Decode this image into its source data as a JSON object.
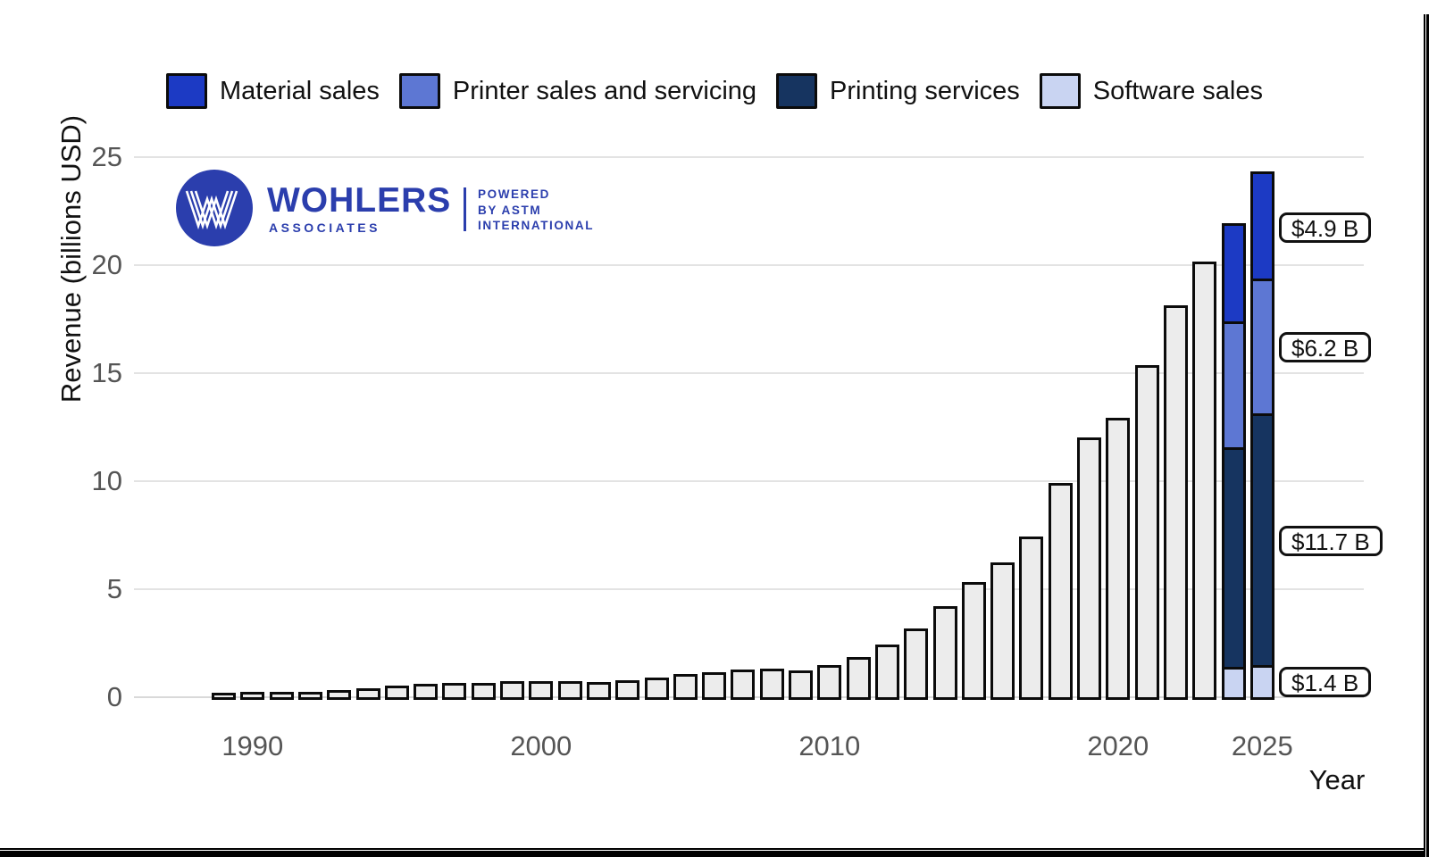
{
  "logo": {
    "brand": "WOHLERS",
    "subbrand": "ASSOCIATES",
    "tagline": [
      "POWERED",
      "BY ASTM",
      "INTERNATIONAL"
    ],
    "color": "#2b3ead"
  },
  "chart_data": {
    "type": "bar",
    "title": "",
    "ylabel": "Revenue (billions USD)",
    "xlabel": "Year",
    "ylim": [
      0,
      25
    ],
    "yticks": [
      0,
      5,
      10,
      15,
      20,
      25
    ],
    "xticks": [
      1990,
      2000,
      2010,
      2020,
      2025
    ],
    "grid": "horizontal",
    "legend_position": "top",
    "default_bar_color": "#ececec",
    "bar_border_color": "#0b0b0b",
    "gridline_color": "#e3e3e3",
    "series": [
      {
        "key": "material",
        "name": "Material sales",
        "color": "#1c3ac4"
      },
      {
        "key": "printer",
        "name": "Printer sales and servicing",
        "color": "#5d77d3"
      },
      {
        "key": "printing",
        "name": "Printing services",
        "color": "#163460"
      },
      {
        "key": "software",
        "name": "Software sales",
        "color": "#c9d4f2"
      }
    ],
    "stack_order_bottom_up": [
      "software",
      "printing",
      "printer",
      "material"
    ],
    "bars": [
      {
        "year": 1989,
        "total": 0.1
      },
      {
        "year": 1990,
        "total": 0.12
      },
      {
        "year": 1991,
        "total": 0.13
      },
      {
        "year": 1992,
        "total": 0.14
      },
      {
        "year": 1993,
        "total": 0.2
      },
      {
        "year": 1994,
        "total": 0.3
      },
      {
        "year": 1995,
        "total": 0.4
      },
      {
        "year": 1996,
        "total": 0.5
      },
      {
        "year": 1997,
        "total": 0.55
      },
      {
        "year": 1998,
        "total": 0.55
      },
      {
        "year": 1999,
        "total": 0.6
      },
      {
        "year": 2000,
        "total": 0.62
      },
      {
        "year": 2001,
        "total": 0.62
      },
      {
        "year": 2002,
        "total": 0.58
      },
      {
        "year": 2003,
        "total": 0.65
      },
      {
        "year": 2004,
        "total": 0.8
      },
      {
        "year": 2005,
        "total": 0.95
      },
      {
        "year": 2006,
        "total": 1.05
      },
      {
        "year": 2007,
        "total": 1.15
      },
      {
        "year": 2008,
        "total": 1.2
      },
      {
        "year": 2009,
        "total": 1.1
      },
      {
        "year": 2010,
        "total": 1.35
      },
      {
        "year": 2011,
        "total": 1.75
      },
      {
        "year": 2012,
        "total": 2.3
      },
      {
        "year": 2013,
        "total": 3.05
      },
      {
        "year": 2014,
        "total": 4.1
      },
      {
        "year": 2015,
        "total": 5.2
      },
      {
        "year": 2016,
        "total": 6.1
      },
      {
        "year": 2017,
        "total": 7.3
      },
      {
        "year": 2018,
        "total": 9.8
      },
      {
        "year": 2019,
        "total": 11.9
      },
      {
        "year": 2020,
        "total": 12.8
      },
      {
        "year": 2021,
        "total": 15.25
      },
      {
        "year": 2022,
        "total": 18.0
      },
      {
        "year": 2023,
        "total": 20.05
      },
      {
        "year": 2024,
        "total": 21.8,
        "stack": {
          "software": 1.3,
          "printing": 10.2,
          "printer": 5.8,
          "material": 4.5
        }
      },
      {
        "year": 2025,
        "total": 24.2,
        "stack": {
          "software": 1.4,
          "printing": 11.7,
          "printer": 6.2,
          "material": 4.9
        }
      }
    ],
    "annotations": [
      {
        "text": "$4.9 B",
        "series": "material",
        "year": 2025
      },
      {
        "text": "$6.2 B",
        "series": "printer",
        "year": 2025
      },
      {
        "text": "$11.7 B",
        "series": "printing",
        "year": 2025
      },
      {
        "text": "$1.4 B",
        "series": "software",
        "year": 2025
      }
    ]
  }
}
